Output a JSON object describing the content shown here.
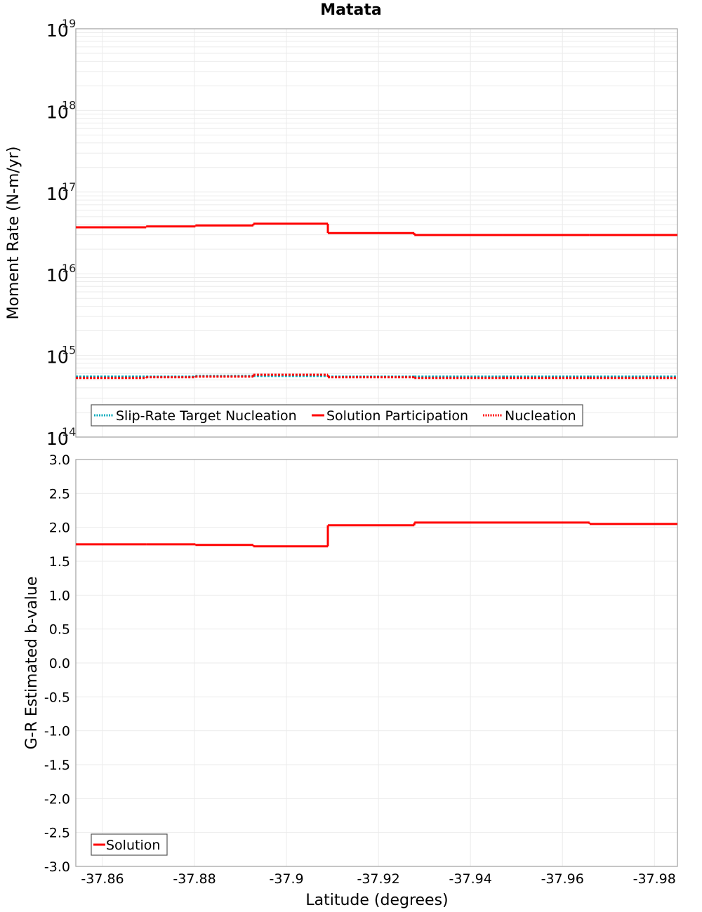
{
  "chart_data": [
    {
      "type": "line",
      "title": "Matata",
      "xlabel": "Latitude (degrees)",
      "ylabel": "Moment Rate (N-m/yr)",
      "yscale": "log",
      "ylim": [
        100000000000000.0,
        1e+19
      ],
      "xlim": [
        -37.8542,
        -37.985
      ],
      "x_reversed": true,
      "grid": true,
      "y_tick_labels": [
        "10^14",
        "10^15",
        "10^16",
        "10^17",
        "10^18",
        "10^19"
      ],
      "legend": [
        "Slip-Rate Target Nucleation",
        "Solution Participation",
        "Nucleation"
      ],
      "legend_position": "lower-left",
      "bin_edges": [
        -37.8542,
        -37.8695,
        -37.8802,
        -37.8928,
        -37.909,
        -37.9278,
        -37.947,
        -37.9659,
        -37.985
      ],
      "series": [
        {
          "name": "Slip-Rate Target Nucleation",
          "color": "#00aabb",
          "style": "dotted",
          "values": [
            550000000000000.0,
            550000000000000.0,
            560000000000000.0,
            560000000000000.0,
            550000000000000.0,
            550000000000000.0,
            550000000000000.0,
            550000000000000.0
          ]
        },
        {
          "name": "Solution Participation",
          "color": "#ff0000",
          "style": "solid",
          "values": [
            3.7e+16,
            3.8e+16,
            3.9e+16,
            4.1e+16,
            3.15e+16,
            2.98e+16,
            2.98e+16,
            2.98e+16
          ]
        },
        {
          "name": "Nucleation",
          "color": "#ff0000",
          "style": "dotted",
          "values": [
            530000000000000.0,
            540000000000000.0,
            550000000000000.0,
            580000000000000.0,
            540000000000000.0,
            530000000000000.0,
            530000000000000.0,
            530000000000000.0
          ]
        }
      ]
    },
    {
      "type": "line",
      "xlabel": "Latitude (degrees)",
      "ylabel": "G-R Estimated b-value",
      "ylim": [
        -3.0,
        3.0
      ],
      "xlim": [
        -37.8542,
        -37.985
      ],
      "x_reversed": true,
      "grid": true,
      "y_ticks": [
        3.0,
        2.5,
        2.0,
        1.5,
        1.0,
        0.5,
        0.0,
        -0.5,
        -1.0,
        -1.5,
        -2.0,
        -2.5,
        -3.0
      ],
      "y_tick_labels": [
        "3.0",
        "2.5",
        "2.0",
        "1.5",
        "1.0",
        "0.5",
        "0.0",
        "-0.5",
        "-1.0",
        "-1.5",
        "-2.0",
        "-2.5",
        "-3.0"
      ],
      "x_ticks": [
        -37.86,
        -37.88,
        -37.9,
        -37.92,
        -37.94,
        -37.96,
        -37.98
      ],
      "x_tick_labels": [
        "-37.86",
        "-37.88",
        "-37.9",
        "-37.92",
        "-37.94",
        "-37.96",
        "-37.98"
      ],
      "legend": [
        "Solution"
      ],
      "legend_position": "lower-left",
      "bin_edges": [
        -37.8542,
        -37.8695,
        -37.8802,
        -37.8928,
        -37.909,
        -37.9278,
        -37.947,
        -37.9659,
        -37.985
      ],
      "series": [
        {
          "name": "Solution",
          "color": "#ff0000",
          "style": "solid",
          "values": [
            1.75,
            1.75,
            1.74,
            1.72,
            2.03,
            2.07,
            2.07,
            2.05
          ]
        }
      ]
    }
  ],
  "labels": {
    "title": "Matata",
    "xlabel": "Latitude (degrees)",
    "ylabel_top": "Moment Rate (N-m/yr)",
    "ylabel_bottom": "G-R Estimated b-value"
  }
}
